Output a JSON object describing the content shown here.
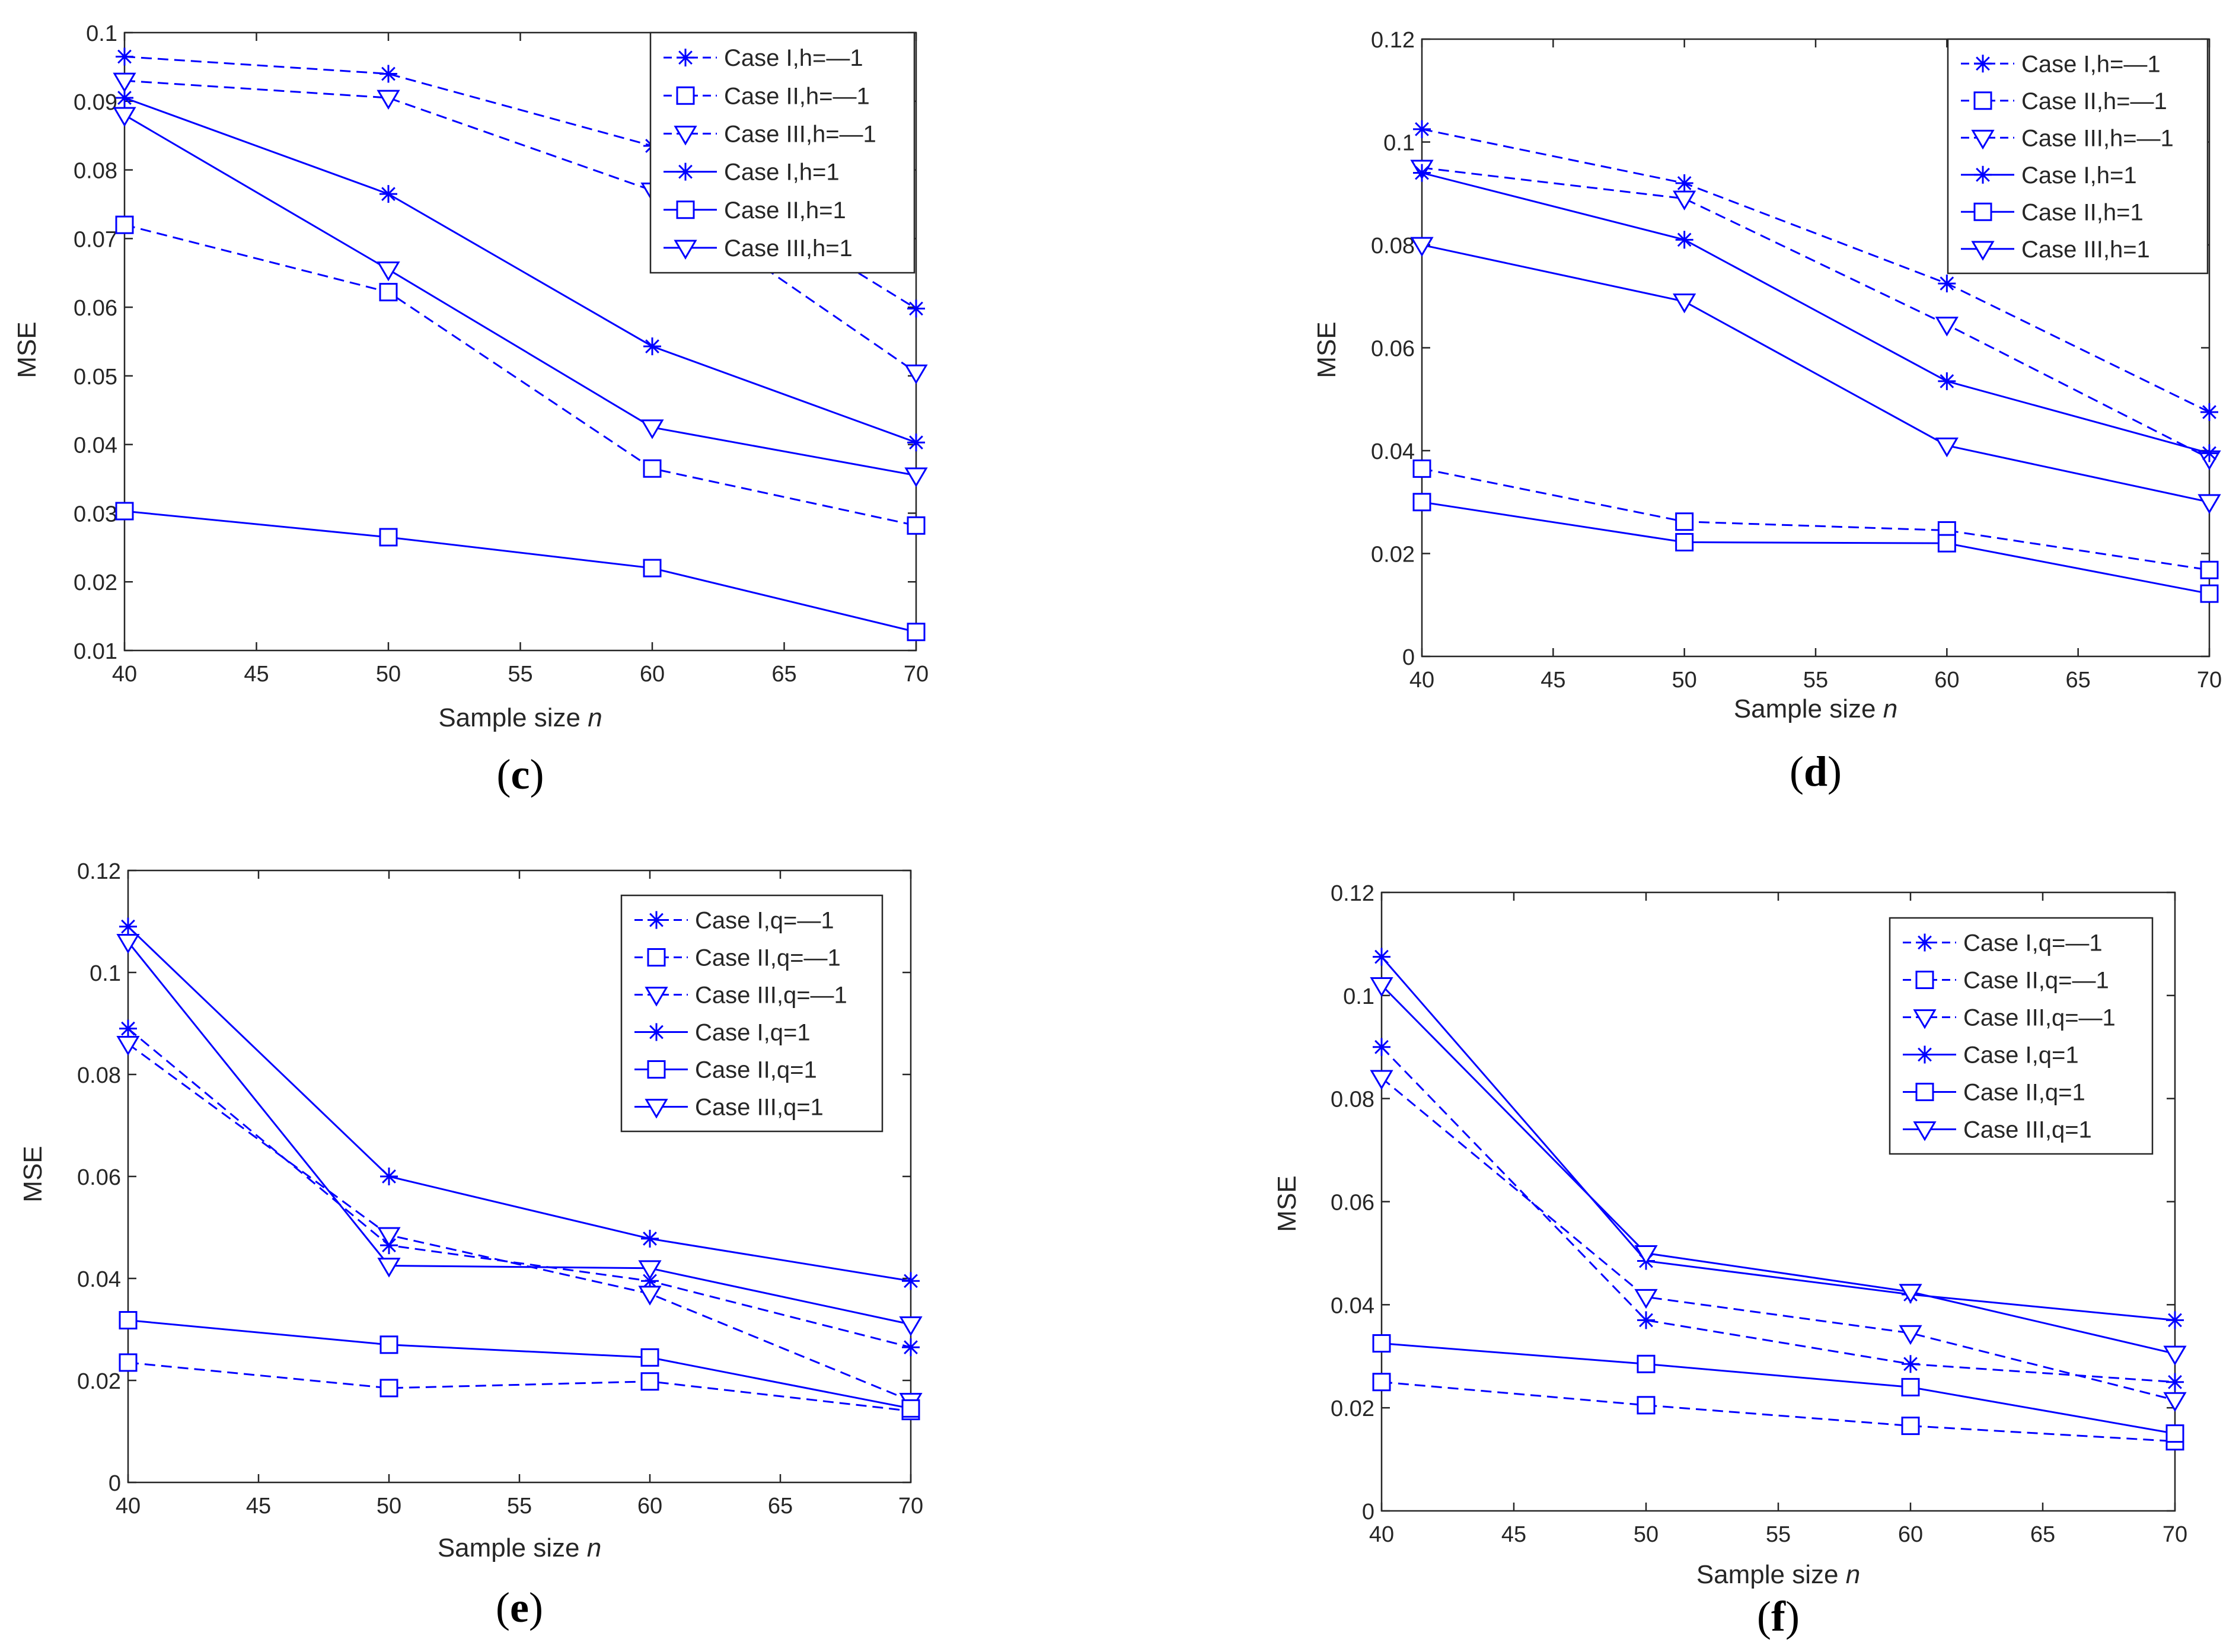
{
  "chart_data": [
    {
      "type": "line",
      "panel_label": "c",
      "xlabel": "Sample size",
      "xlabel_var": "n",
      "ylabel": "MSE",
      "xlim": [
        40,
        70
      ],
      "ylim": [
        0.01,
        0.1
      ],
      "xticks": [
        "40",
        "45",
        "50",
        "55",
        "60",
        "65",
        "70"
      ],
      "yticks": [
        "0.01",
        "0.02",
        "0.03",
        "0.04",
        "0.05",
        "0.06",
        "0.07",
        "0.08",
        "0.09",
        "0.1"
      ],
      "legend_position": "top-right",
      "x": [
        40,
        50,
        60,
        70
      ],
      "series": [
        {
          "name": "Case I,h=—1",
          "values": [
            0.0965,
            0.094,
            0.0835,
            0.0598
          ],
          "dashed": true,
          "marker": "star"
        },
        {
          "name": "Case II,h=—1",
          "values": [
            0.072,
            0.0622,
            0.0365,
            0.0282
          ],
          "dashed": true,
          "marker": "square"
        },
        {
          "name": "Case III,h=—1",
          "values": [
            0.093,
            0.0905,
            0.077,
            0.0505
          ],
          "dashed": true,
          "marker": "triangle"
        },
        {
          "name": "Case I,h=1",
          "values": [
            0.0905,
            0.0765,
            0.0543,
            0.0403
          ],
          "dashed": false,
          "marker": "star"
        },
        {
          "name": "Case II,h=1",
          "values": [
            0.0303,
            0.0265,
            0.022,
            0.0127
          ],
          "dashed": false,
          "marker": "square"
        },
        {
          "name": "Case III,h=1",
          "values": [
            0.088,
            0.0655,
            0.0425,
            0.0355
          ],
          "dashed": false,
          "marker": "triangle"
        }
      ]
    },
    {
      "type": "line",
      "panel_label": "d",
      "xlabel": "Sample size",
      "xlabel_var": "n",
      "ylabel": "MSE",
      "xlim": [
        40,
        70
      ],
      "ylim": [
        0,
        0.12
      ],
      "xticks": [
        "40",
        "45",
        "50",
        "55",
        "60",
        "65",
        "70"
      ],
      "yticks": [
        "0",
        "0.02",
        "0.04",
        "0.06",
        "0.08",
        "0.1",
        "0.12"
      ],
      "legend_position": "top-right",
      "x": [
        40,
        50,
        60,
        70
      ],
      "series": [
        {
          "name": "Case I,h=—1",
          "values": [
            0.1025,
            0.092,
            0.0725,
            0.0475
          ],
          "dashed": true,
          "marker": "star"
        },
        {
          "name": "Case II,h=—1",
          "values": [
            0.0365,
            0.0262,
            0.0245,
            0.0168
          ],
          "dashed": true,
          "marker": "square"
        },
        {
          "name": "Case III,h=—1",
          "values": [
            0.095,
            0.089,
            0.0645,
            0.0385
          ],
          "dashed": true,
          "marker": "triangle"
        },
        {
          "name": "Case I,h=1",
          "values": [
            0.094,
            0.081,
            0.0535,
            0.0395
          ],
          "dashed": false,
          "marker": "star"
        },
        {
          "name": "Case II,h=1",
          "values": [
            0.03,
            0.0222,
            0.022,
            0.0122
          ],
          "dashed": false,
          "marker": "square"
        },
        {
          "name": "Case III,h=1",
          "values": [
            0.08,
            0.069,
            0.041,
            0.03
          ],
          "dashed": false,
          "marker": "triangle"
        }
      ]
    },
    {
      "type": "line",
      "panel_label": "e",
      "xlabel": "Sample size",
      "xlabel_var": "n",
      "ylabel": "MSE",
      "xlim": [
        40,
        70
      ],
      "ylim": [
        0,
        0.12
      ],
      "xticks": [
        "40",
        "45",
        "50",
        "55",
        "60",
        "65",
        "70"
      ],
      "yticks": [
        "0",
        "0.02",
        "0.04",
        "0.06",
        "0.08",
        "0.1",
        "0.12"
      ],
      "legend_position": "top-right",
      "x": [
        40,
        50,
        60,
        70
      ],
      "series": [
        {
          "name": "Case I,q=—1",
          "values": [
            0.089,
            0.0465,
            0.0395,
            0.0265
          ],
          "dashed": true,
          "marker": "star"
        },
        {
          "name": "Case II,q=—1",
          "values": [
            0.0235,
            0.0185,
            0.0198,
            0.014
          ],
          "dashed": true,
          "marker": "square"
        },
        {
          "name": "Case III,q=—1",
          "values": [
            0.086,
            0.0485,
            0.037,
            0.016
          ],
          "dashed": true,
          "marker": "triangle"
        },
        {
          "name": "Case I,q=1",
          "values": [
            0.109,
            0.06,
            0.0478,
            0.0395
          ],
          "dashed": false,
          "marker": "star"
        },
        {
          "name": "Case II,q=1",
          "values": [
            0.0318,
            0.027,
            0.0245,
            0.0145
          ],
          "dashed": false,
          "marker": "square"
        },
        {
          "name": "Case III,q=1",
          "values": [
            0.106,
            0.0425,
            0.042,
            0.031
          ],
          "dashed": false,
          "marker": "triangle"
        }
      ]
    },
    {
      "type": "line",
      "panel_label": "f",
      "xlabel": "Sample size",
      "xlabel_var": "n",
      "ylabel": "MSE",
      "xlim": [
        40,
        70
      ],
      "ylim": [
        0,
        0.12
      ],
      "xticks": [
        "40",
        "45",
        "50",
        "55",
        "60",
        "65",
        "70"
      ],
      "yticks": [
        "0",
        "0.02",
        "0.04",
        "0.06",
        "0.08",
        "0.1",
        "0.12"
      ],
      "legend_position": "top-right",
      "x": [
        40,
        50,
        60,
        70
      ],
      "series": [
        {
          "name": "Case I,q=—1",
          "values": [
            0.09,
            0.037,
            0.0285,
            0.025
          ],
          "dashed": true,
          "marker": "star"
        },
        {
          "name": "Case II,q=—1",
          "values": [
            0.025,
            0.0205,
            0.0165,
            0.0135
          ],
          "dashed": true,
          "marker": "square"
        },
        {
          "name": "Case III,q=—1",
          "values": [
            0.084,
            0.0415,
            0.0345,
            0.0215
          ],
          "dashed": true,
          "marker": "triangle"
        },
        {
          "name": "Case I,q=1",
          "values": [
            0.1075,
            0.0485,
            0.042,
            0.037
          ],
          "dashed": false,
          "marker": "star"
        },
        {
          "name": "Case II,q=1",
          "values": [
            0.0325,
            0.0285,
            0.024,
            0.015
          ],
          "dashed": false,
          "marker": "square"
        },
        {
          "name": "Case III,q=1",
          "values": [
            0.102,
            0.05,
            0.0425,
            0.0305
          ],
          "dashed": false,
          "marker": "triangle"
        }
      ]
    }
  ],
  "colors": {
    "series": "#0000ff",
    "axis": "#262626",
    "text": "#262626"
  }
}
